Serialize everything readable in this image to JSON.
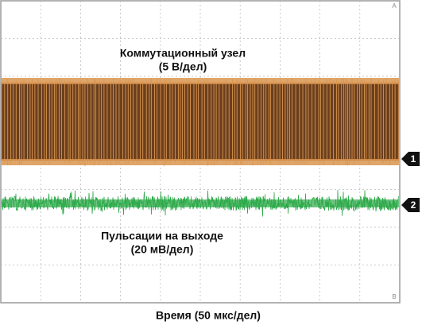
{
  "screen": {
    "channel1": {
      "label": "Коммутационный узел",
      "scale": "(5 В/дел)",
      "marker": "1"
    },
    "channel2": {
      "label": "Пульсации на выходе",
      "scale": "(20 мВ/дел)",
      "marker": "2"
    },
    "corner_top": "A",
    "corner_bottom": "B"
  },
  "x_axis_label": "Время (50 мкс/дел)"
}
